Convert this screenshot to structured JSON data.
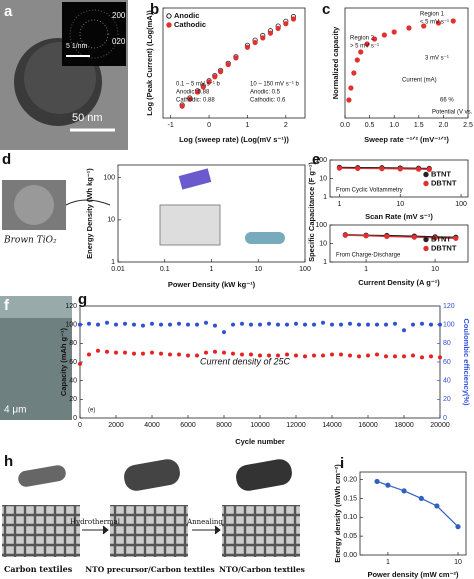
{
  "panels": {
    "a": {
      "label": "a",
      "inset_labels": [
        "200",
        "020"
      ],
      "inset_scale": "5 1/nm",
      "scale_bar": "50 nm"
    },
    "d": {
      "caption": "Brown TiO₂"
    },
    "f": {
      "label": "f",
      "scale_bar": "4 μm"
    },
    "h": {
      "label": "h",
      "steps": [
        "Carbon textiles",
        "Hydrothermal",
        "NTO precursor/Carbon textiles",
        "Annealing",
        "NTO/Carbon textiles"
      ]
    }
  },
  "chart_data": [
    {
      "type": "scatter",
      "panel": "b",
      "xlabel": "Log (sweep rate) (Log(mV s⁻¹))",
      "ylabel": "Log (Peak Current) (Log(mA))",
      "x": [
        -0.7,
        -0.5,
        -0.3,
        -0.15,
        0,
        0.15,
        0.3,
        0.5,
        0.7,
        1.0,
        1.2,
        1.4,
        1.6,
        1.8,
        2.0,
        2.2
      ],
      "series": [
        {
          "name": "Anodic",
          "color": "#222222",
          "marker": "open",
          "values": [
            -1.17,
            -0.99,
            -0.81,
            -0.68,
            -0.55,
            -0.42,
            -0.29,
            -0.11,
            0.06,
            0.35,
            0.48,
            0.6,
            0.72,
            0.84,
            0.96,
            1.08
          ]
        },
        {
          "name": "Cathodic",
          "color": "#e03030",
          "marker": "filled",
          "values": [
            -1.2,
            -1.02,
            -0.84,
            -0.71,
            -0.58,
            -0.45,
            -0.32,
            -0.14,
            0.03,
            0.3,
            0.42,
            0.54,
            0.66,
            0.78,
            0.9,
            1.02
          ]
        }
      ],
      "xlim": [
        -1.2,
        2.5
      ],
      "xticks": [
        -1,
        0,
        1,
        2
      ],
      "ylim": [
        -1.5,
        1.3
      ],
      "legend": "upper left",
      "annotations": [
        "0.1 – 5 mV s⁻¹ b",
        "Anodic: 0.88",
        "Cathodic: 0.88",
        "10 – 150 mV s⁻¹ b",
        "Anodic: 0.5",
        "Cathodic: 0.6"
      ]
    },
    {
      "type": "scatter",
      "panel": "c",
      "xlabel": "Sweep rate ⁻¹ᐟ² (mV⁻¹ᐟ²)",
      "ylabel": "Normalized capacity",
      "x": [
        0.08,
        0.12,
        0.18,
        0.25,
        0.32,
        0.45,
        0.6,
        0.8,
        1.0,
        1.3,
        1.6,
        1.9,
        2.2
      ],
      "series": [
        {
          "name": "Capacity",
          "color": "#e03030",
          "marker": "filled",
          "values": [
            0.18,
            0.3,
            0.45,
            0.58,
            0.66,
            0.74,
            0.79,
            0.83,
            0.86,
            0.9,
            0.92,
            0.95,
            0.97
          ]
        }
      ],
      "xlim": [
        0,
        2.5
      ],
      "xticks": [
        {
          "value": 0,
          "label": "0.0"
        },
        {
          "value": 0.5,
          "label": "0.5"
        },
        {
          "value": 1,
          "label": "1.0"
        },
        {
          "value": 1.5,
          "label": "1.5"
        },
        {
          "value": 2,
          "label": "2.0"
        },
        {
          "value": 2.5,
          "label": "2.5"
        }
      ],
      "ylim": [
        0,
        1.1
      ],
      "annotations": [
        "Region 1",
        "< 5 mV s⁻¹",
        "Region 2",
        "> 5 mV s⁻¹",
        "3 mV s⁻¹",
        "66 %",
        "Current (mA)",
        "Potential (V vs. Na/Na⁺)"
      ]
    },
    {
      "type": "scatter",
      "panel": "d",
      "xlabel": "Power Density (kW kg⁻¹)",
      "ylabel": "Energy Density (Wh kg⁻¹)",
      "series": [],
      "xlog": true,
      "xlim": [
        0.01,
        100
      ],
      "xticks": [
        0.01,
        0.1,
        1,
        10,
        100
      ],
      "ylog": true,
      "ylim": [
        1,
        200
      ],
      "yticks": [
        1,
        10,
        100
      ]
    },
    {
      "type": "line",
      "panel": "e",
      "xlabel": "Scan Rate (mV s⁻¹)",
      "ylabel": "Specific Capacitance (F g⁻¹)",
      "x": [
        1,
        2,
        5,
        10,
        20,
        30
      ],
      "series": [
        {
          "name": "BTNT",
          "color": "#222222",
          "values": [
            40,
            39,
            38,
            37,
            36,
            35
          ]
        },
        {
          "name": "DBTNT",
          "color": "#e03030",
          "values": [
            36,
            35,
            34,
            33,
            32,
            31
          ]
        }
      ],
      "xlog": true,
      "xlim": [
        0.7,
        130
      ],
      "xticks": [
        1,
        10,
        100
      ],
      "ylog": true,
      "ylim": [
        1,
        100
      ],
      "yticks": [
        1,
        10,
        100
      ],
      "legend": "center right",
      "annotations": [
        "From Cyclic Voltammetry"
      ]
    },
    {
      "type": "line",
      "xlabel": "Current Density (A g⁻¹)",
      "x": [
        0.5,
        1,
        2,
        5,
        10,
        20
      ],
      "series": [
        {
          "name": "BTNT",
          "color": "#222222",
          "values": [
            30,
            28,
            27,
            25,
            23,
            22
          ]
        },
        {
          "name": "DBTNT",
          "color": "#e03030",
          "values": [
            28,
            26,
            24,
            22,
            20,
            19
          ]
        }
      ],
      "xlog": true,
      "xlim": [
        0.3,
        30
      ],
      "xticks": [
        1,
        10
      ],
      "ylog": true,
      "ylim": [
        1,
        100
      ],
      "yticks": [
        1,
        10,
        100
      ],
      "legend": "center right",
      "annotations": [
        "From Charge-Discharge"
      ]
    },
    {
      "type": "scatter",
      "panel": "g",
      "xlabel": "Cycle number",
      "ylabel": "Capacity (mAh g⁻¹)",
      "y2label": "Coulombic efficiency(%)",
      "x": [
        0,
        500,
        1000,
        1500,
        2000,
        2500,
        3000,
        3500,
        4000,
        4500,
        5000,
        5500,
        6000,
        6500,
        7000,
        7500,
        8000,
        8500,
        9000,
        9500,
        10000,
        10500,
        11000,
        11500,
        12000,
        12500,
        13000,
        13500,
        14000,
        14500,
        15000,
        15500,
        16000,
        16500,
        17000,
        17500,
        18000,
        18500,
        19000,
        19500,
        20000
      ],
      "series": [
        {
          "name": "Capacity",
          "color": "#e82020",
          "marker": "filled",
          "values": [
            58,
            68,
            72,
            71,
            70,
            70,
            69,
            69,
            70,
            69,
            68,
            68,
            67,
            67,
            70,
            71,
            70,
            69,
            68,
            68,
            67,
            67,
            67,
            68,
            67,
            66,
            67,
            67,
            68,
            68,
            67,
            66,
            67,
            68,
            66,
            66,
            66,
            67,
            65,
            66,
            65
          ]
        },
        {
          "name": "Coulombic efficiency",
          "color": "#3050d8",
          "marker": "filled",
          "axis": "y2",
          "values": [
            100,
            101,
            100,
            102,
            100,
            101,
            100,
            99,
            101,
            100,
            100,
            101,
            100,
            100,
            102,
            99,
            92,
            100,
            101,
            100,
            100,
            101,
            100,
            100,
            101,
            100,
            100,
            102,
            100,
            100,
            101,
            100,
            100,
            100,
            100,
            101,
            94,
            100,
            101,
            100,
            100
          ]
        }
      ],
      "xlim": [
        0,
        20000
      ],
      "xticks": [
        0,
        2000,
        4000,
        6000,
        8000,
        10000,
        12000,
        14000,
        16000,
        18000,
        20000
      ],
      "ylim": [
        0,
        120
      ],
      "yticks": [
        0,
        20,
        40,
        60,
        80,
        100,
        120
      ],
      "y2lim": [
        0,
        120
      ],
      "y2ticks": [
        0,
        20,
        40,
        60,
        80,
        100,
        120
      ],
      "annotations": [
        "Current density of 25C",
        "(e)"
      ]
    },
    {
      "type": "line",
      "panel": "i",
      "xlabel": "Power density (mW cm⁻²)",
      "ylabel": "Energy density (mWh cm⁻²)",
      "x": [
        0.7,
        1,
        1.7,
        3,
        5,
        10
      ],
      "series": [
        {
          "name": "Energy density",
          "color": "#3060c0",
          "marker": "filled",
          "values": [
            0.195,
            0.185,
            0.17,
            0.15,
            0.13,
            0.075
          ]
        }
      ],
      "xlog": true,
      "xlim": [
        0.4,
        13
      ],
      "xticks": [
        1,
        10
      ],
      "ylim": [
        0,
        0.22
      ],
      "yticks": [
        {
          "value": 0,
          "label": "0.00"
        },
        {
          "value": 0.05,
          "label": "0.05"
        },
        {
          "value": 0.1,
          "label": "0.10"
        },
        {
          "value": 0.15,
          "label": "0.15"
        },
        {
          "value": 0.2,
          "label": "0.20"
        }
      ]
    }
  ]
}
